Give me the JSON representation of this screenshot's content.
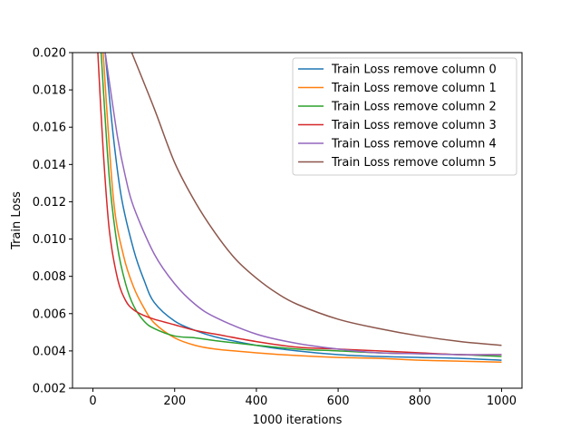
{
  "chart_data": {
    "type": "line",
    "title": "",
    "xlabel": "1000 iterations",
    "ylabel": "Train Loss",
    "xlim": [
      -50,
      1050
    ],
    "ylim": [
      0.002,
      0.02
    ],
    "grid": false,
    "legend_position": "top-right",
    "x_ticks": [
      0,
      200,
      400,
      600,
      800,
      1000
    ],
    "y_ticks": [
      0.002,
      0.004,
      0.006,
      0.008,
      0.01,
      0.012,
      0.014,
      0.016,
      0.018,
      0.02
    ],
    "x_tick_labels": [
      "0",
      "200",
      "400",
      "600",
      "800",
      "1000"
    ],
    "y_tick_labels": [
      "0.002",
      "0.004",
      "0.006",
      "0.008",
      "0.010",
      "0.012",
      "0.014",
      "0.016",
      "0.018",
      "0.020"
    ],
    "series": [
      {
        "name": "Train Loss remove column 0",
        "color": "#1f77b4",
        "points": [
          [
            30,
            0.02
          ],
          [
            50,
            0.0155
          ],
          [
            70,
            0.0122
          ],
          [
            100,
            0.0094
          ],
          [
            125,
            0.0078
          ],
          [
            150,
            0.0066
          ],
          [
            200,
            0.0056
          ],
          [
            250,
            0.0051
          ],
          [
            300,
            0.00475
          ],
          [
            400,
            0.0043
          ],
          [
            500,
            0.004
          ],
          [
            600,
            0.0038
          ],
          [
            700,
            0.0037
          ],
          [
            800,
            0.00365
          ],
          [
            900,
            0.0036
          ],
          [
            1000,
            0.0035
          ]
        ]
      },
      {
        "name": "Train Loss remove column 1",
        "color": "#ff7f0e",
        "points": [
          [
            25,
            0.02
          ],
          [
            50,
            0.0122
          ],
          [
            75,
            0.0091
          ],
          [
            100,
            0.0074
          ],
          [
            125,
            0.0063
          ],
          [
            150,
            0.0055
          ],
          [
            200,
            0.0047
          ],
          [
            250,
            0.0043
          ],
          [
            300,
            0.0041
          ],
          [
            400,
            0.0039
          ],
          [
            500,
            0.00375
          ],
          [
            600,
            0.00365
          ],
          [
            700,
            0.0036
          ],
          [
            800,
            0.0035
          ],
          [
            900,
            0.00345
          ],
          [
            1000,
            0.0034
          ]
        ]
      },
      {
        "name": "Train Loss remove column 2",
        "color": "#2ca02c",
        "points": [
          [
            20,
            0.02
          ],
          [
            40,
            0.0133
          ],
          [
            60,
            0.0096
          ],
          [
            80,
            0.0076
          ],
          [
            100,
            0.0064
          ],
          [
            125,
            0.0056
          ],
          [
            150,
            0.0052
          ],
          [
            200,
            0.0048
          ],
          [
            250,
            0.0047
          ],
          [
            300,
            0.00455
          ],
          [
            400,
            0.0043
          ],
          [
            500,
            0.0041
          ],
          [
            600,
            0.004
          ],
          [
            700,
            0.0039
          ],
          [
            800,
            0.00385
          ],
          [
            900,
            0.0038
          ],
          [
            1000,
            0.0037
          ]
        ]
      },
      {
        "name": "Train Loss remove column 3",
        "color": "#d62728",
        "points": [
          [
            12,
            0.02
          ],
          [
            25,
            0.0148
          ],
          [
            40,
            0.0105
          ],
          [
            60,
            0.0079
          ],
          [
            80,
            0.0067
          ],
          [
            100,
            0.0062
          ],
          [
            125,
            0.0059
          ],
          [
            150,
            0.0057
          ],
          [
            200,
            0.0054
          ],
          [
            250,
            0.0051
          ],
          [
            300,
            0.0049
          ],
          [
            400,
            0.0045
          ],
          [
            500,
            0.0042
          ],
          [
            600,
            0.0041
          ],
          [
            700,
            0.004
          ],
          [
            800,
            0.0039
          ],
          [
            900,
            0.0038
          ],
          [
            1000,
            0.0038
          ]
        ]
      },
      {
        "name": "Train Loss remove column 4",
        "color": "#9467bd",
        "points": [
          [
            30,
            0.02
          ],
          [
            60,
            0.0155
          ],
          [
            80,
            0.0133
          ],
          [
            100,
            0.0117
          ],
          [
            150,
            0.0092
          ],
          [
            200,
            0.0076
          ],
          [
            250,
            0.0065
          ],
          [
            300,
            0.0058
          ],
          [
            400,
            0.0049
          ],
          [
            500,
            0.0044
          ],
          [
            600,
            0.0041
          ],
          [
            700,
            0.0039
          ],
          [
            800,
            0.00385
          ],
          [
            900,
            0.0038
          ],
          [
            1000,
            0.0038
          ]
        ]
      },
      {
        "name": "Train Loss remove column 5",
        "color": "#8c564b",
        "points": [
          [
            95,
            0.02
          ],
          [
            150,
            0.017
          ],
          [
            200,
            0.0141
          ],
          [
            250,
            0.012
          ],
          [
            300,
            0.0103
          ],
          [
            350,
            0.0089
          ],
          [
            400,
            0.0079
          ],
          [
            450,
            0.0071
          ],
          [
            500,
            0.0065
          ],
          [
            600,
            0.0057
          ],
          [
            700,
            0.0052
          ],
          [
            800,
            0.0048
          ],
          [
            900,
            0.0045
          ],
          [
            1000,
            0.0043
          ]
        ]
      }
    ]
  }
}
